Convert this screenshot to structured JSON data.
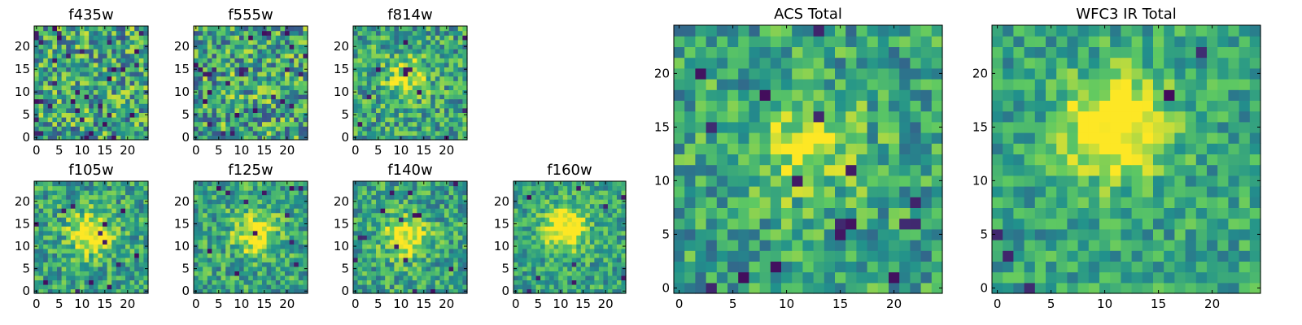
{
  "colormap": {
    "name": "viridis",
    "stops": [
      "#440154",
      "#3b528b",
      "#21918c",
      "#5ec962",
      "#fde725"
    ]
  },
  "chart_data": [
    {
      "type": "heatmap",
      "title": "f435w",
      "grid_size": 25,
      "xlim": [
        0,
        24
      ],
      "ylim": [
        0,
        24
      ],
      "x_ticks": [
        0,
        5,
        10,
        15,
        20
      ],
      "y_ticks": [
        0,
        5,
        10,
        15,
        20
      ],
      "seed": 11,
      "blob_center": [
        12,
        12
      ],
      "blob_strength": 0.0,
      "noise": 0.35,
      "dark_fraction": 0.05
    },
    {
      "type": "heatmap",
      "title": "f555w",
      "grid_size": 25,
      "xlim": [
        0,
        24
      ],
      "ylim": [
        0,
        24
      ],
      "x_ticks": [
        0,
        5,
        10,
        15,
        20
      ],
      "y_ticks": [
        0,
        5,
        10,
        15,
        20
      ],
      "seed": 23,
      "blob_center": [
        12,
        12
      ],
      "blob_strength": 0.05,
      "noise": 0.35,
      "dark_fraction": 0.04
    },
    {
      "type": "heatmap",
      "title": "f814w",
      "grid_size": 25,
      "xlim": [
        0,
        24
      ],
      "ylim": [
        0,
        24
      ],
      "x_ticks": [
        0,
        5,
        10,
        15,
        20
      ],
      "y_ticks": [
        0,
        5,
        10,
        15,
        20
      ],
      "seed": 37,
      "blob_center": [
        11,
        13
      ],
      "blob_strength": 0.35,
      "noise": 0.28,
      "dark_fraction": 0.02
    },
    {
      "type": "heatmap",
      "title": "f105w",
      "grid_size": 25,
      "xlim": [
        0,
        24
      ],
      "ylim": [
        0,
        24
      ],
      "x_ticks": [
        0,
        5,
        10,
        15,
        20
      ],
      "y_ticks": [
        0,
        5,
        10,
        15,
        20
      ],
      "seed": 41,
      "blob_center": [
        12,
        13
      ],
      "blob_strength": 0.5,
      "noise": 0.25,
      "dark_fraction": 0.02
    },
    {
      "type": "heatmap",
      "title": "f125w",
      "grid_size": 25,
      "xlim": [
        0,
        24
      ],
      "ylim": [
        0,
        24
      ],
      "x_ticks": [
        0,
        5,
        10,
        15,
        20
      ],
      "y_ticks": [
        0,
        5,
        10,
        15,
        20
      ],
      "seed": 53,
      "blob_center": [
        13,
        13
      ],
      "blob_strength": 0.45,
      "noise": 0.25,
      "dark_fraction": 0.02
    },
    {
      "type": "heatmap",
      "title": "f140w",
      "grid_size": 25,
      "xlim": [
        0,
        24
      ],
      "ylim": [
        0,
        24
      ],
      "x_ticks": [
        0,
        5,
        10,
        15,
        20
      ],
      "y_ticks": [
        0,
        5,
        10,
        15,
        20
      ],
      "seed": 67,
      "blob_center": [
        11,
        12
      ],
      "blob_strength": 0.5,
      "noise": 0.25,
      "dark_fraction": 0.02
    },
    {
      "type": "heatmap",
      "title": "f160w",
      "grid_size": 25,
      "xlim": [
        0,
        24
      ],
      "ylim": [
        0,
        24
      ],
      "x_ticks": [
        0,
        5,
        10,
        15,
        20
      ],
      "y_ticks": [
        0,
        5,
        10,
        15,
        20
      ],
      "seed": 79,
      "blob_center": [
        11,
        14
      ],
      "blob_strength": 0.55,
      "noise": 0.22,
      "dark_fraction": 0.02
    },
    {
      "type": "heatmap",
      "title": "ACS Total",
      "grid_size": 25,
      "xlim": [
        0,
        24
      ],
      "ylim": [
        0,
        24
      ],
      "x_ticks": [
        0,
        5,
        10,
        15,
        20
      ],
      "y_ticks": [
        0,
        5,
        10,
        15,
        20
      ],
      "seed": 91,
      "blob_center": [
        12,
        13
      ],
      "blob_strength": 0.35,
      "noise": 0.25,
      "dark_fraction": 0.03
    },
    {
      "type": "heatmap",
      "title": "WFC3 IR Total",
      "grid_size": 25,
      "xlim": [
        0,
        24
      ],
      "ylim": [
        0,
        24
      ],
      "x_ticks": [
        0,
        5,
        10,
        15,
        20
      ],
      "y_ticks": [
        0,
        5,
        10,
        15,
        20
      ],
      "seed": 103,
      "blob_center": [
        11,
        15
      ],
      "blob_strength": 0.6,
      "noise": 0.2,
      "dark_fraction": 0.02
    }
  ]
}
